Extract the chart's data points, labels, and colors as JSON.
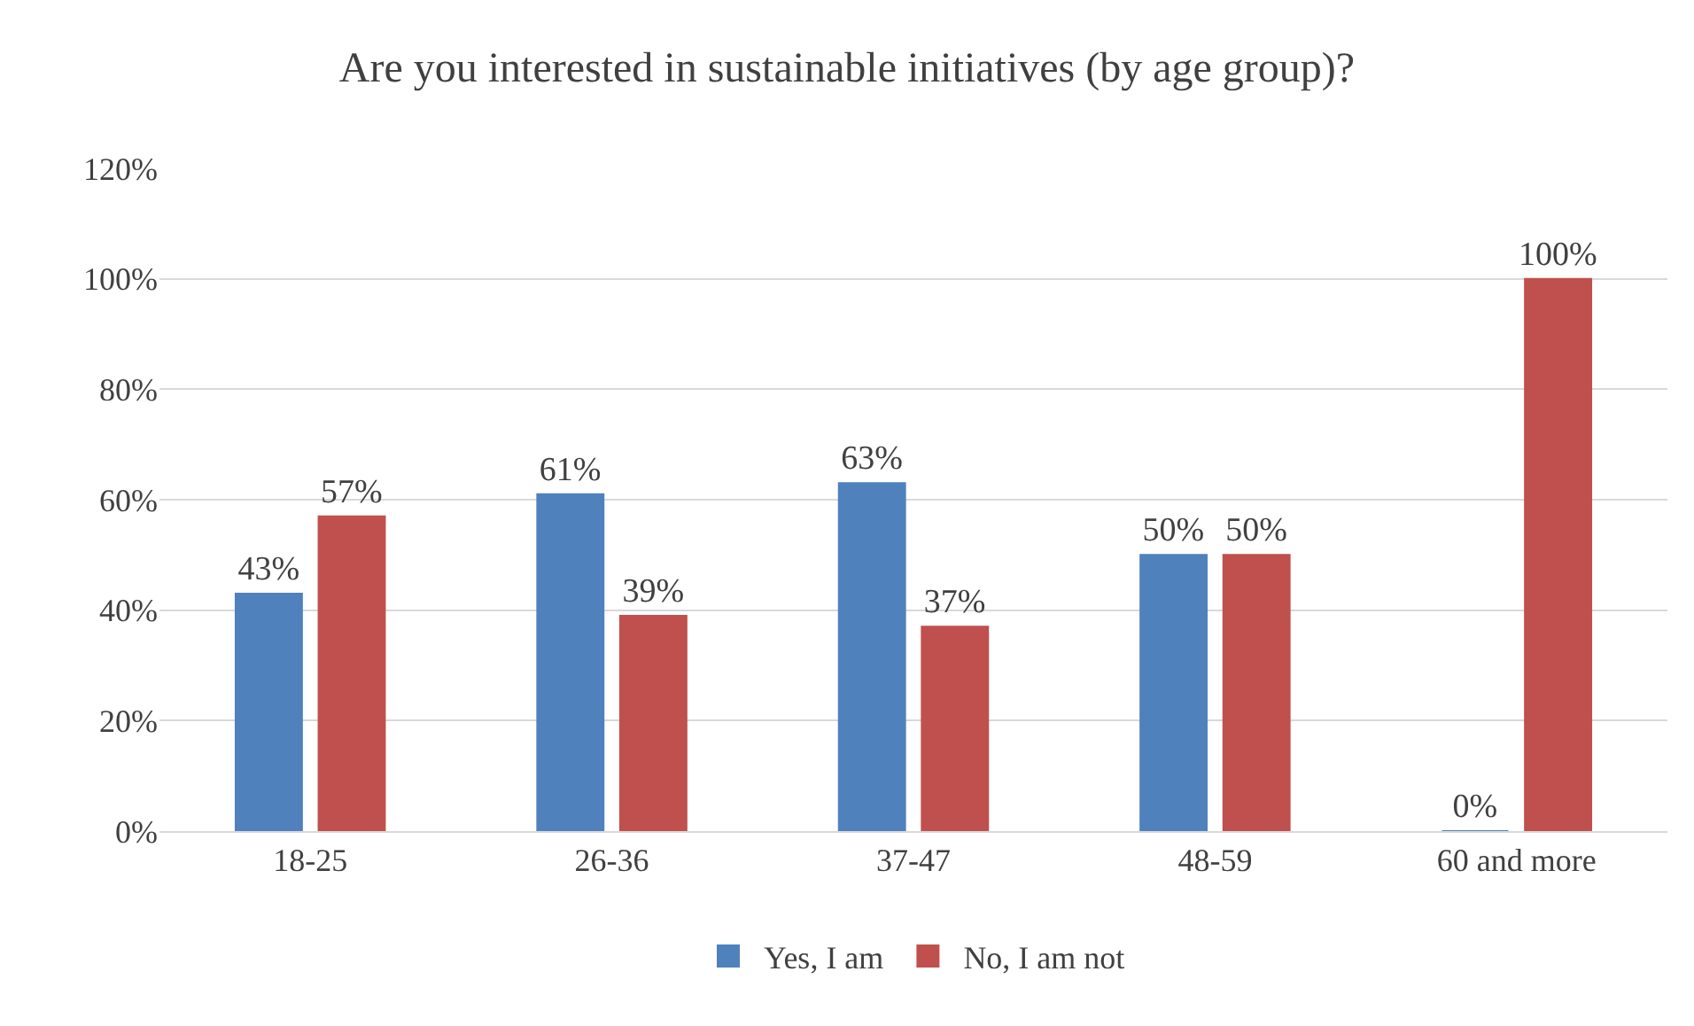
{
  "chart_data": {
    "type": "bar",
    "title": "Are you interested in sustainable initiatives (by age group)?",
    "categories": [
      "18-25",
      "26-36",
      "37-47",
      "48-59",
      "60 and more"
    ],
    "series": [
      {
        "name": "Yes, I am",
        "color": "#4f81bd",
        "values": [
          43,
          61,
          63,
          50,
          0
        ],
        "value_labels": [
          "43%",
          "61%",
          "63%",
          "50%",
          "0%"
        ]
      },
      {
        "name": "No, I am not",
        "color": "#c0504d",
        "values": [
          57,
          39,
          37,
          50,
          100
        ],
        "value_labels": [
          "57%",
          "39%",
          "37%",
          "50%",
          "100%"
        ]
      }
    ],
    "ylim": [
      0,
      120
    ],
    "yticks": [
      {
        "value": 0,
        "label": "0%"
      },
      {
        "value": 20,
        "label": "20%"
      },
      {
        "value": 40,
        "label": "40%"
      },
      {
        "value": 60,
        "label": "60%"
      },
      {
        "value": 80,
        "label": "80%"
      },
      {
        "value": 100,
        "label": "100%"
      },
      {
        "value": 120,
        "label": "120%"
      }
    ],
    "grid": "y",
    "legend": "bottom"
  }
}
